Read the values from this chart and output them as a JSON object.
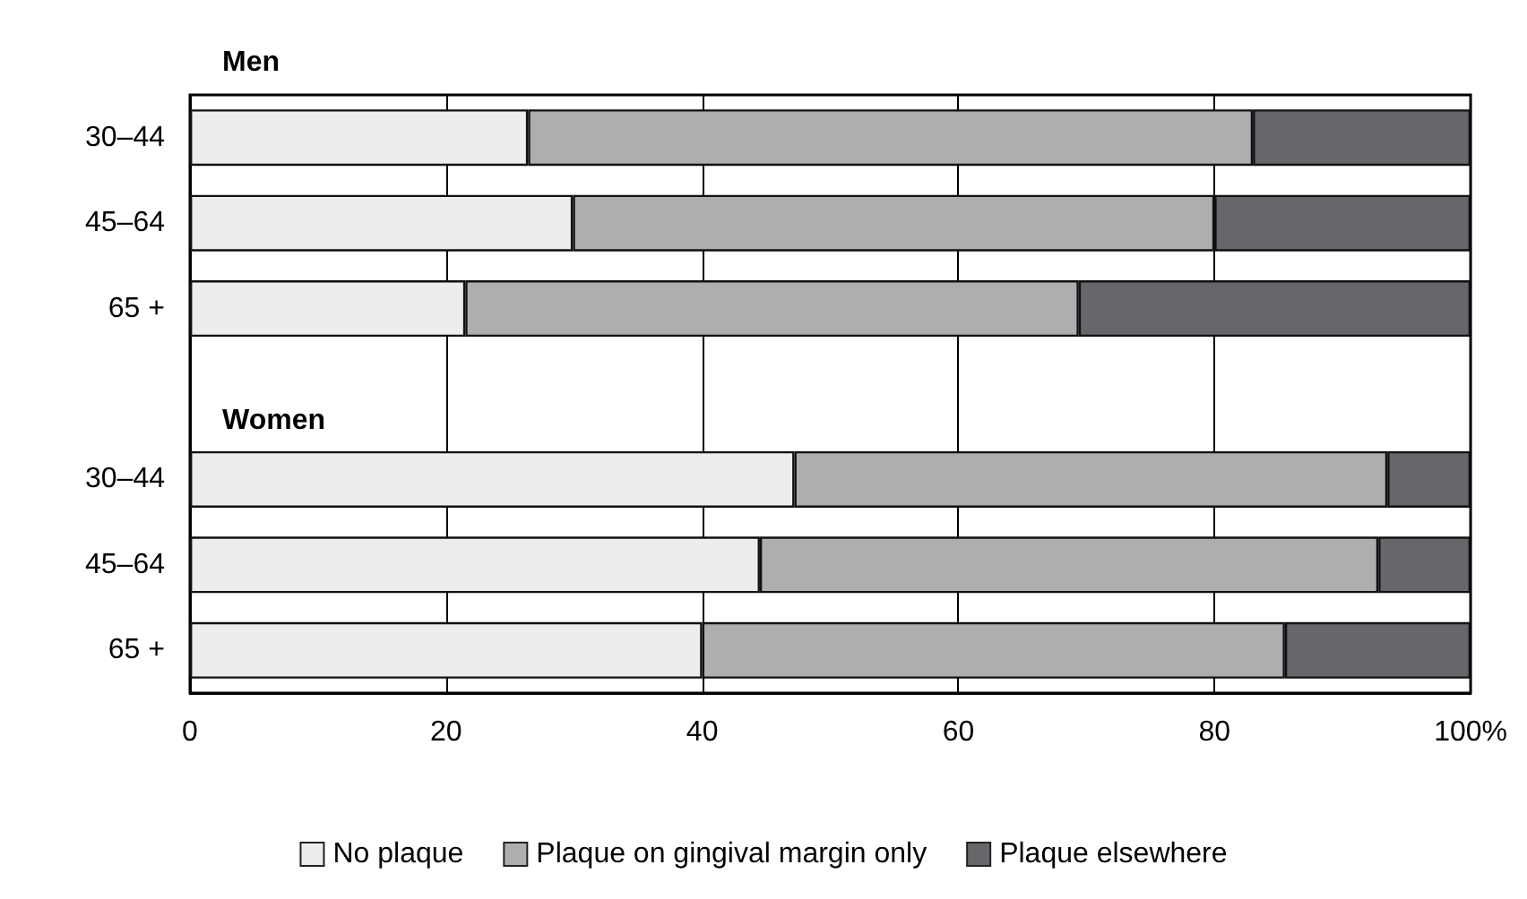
{
  "chart_data": {
    "type": "bar",
    "orientation": "horizontal",
    "stacked": true,
    "categories": [
      "30–44",
      "45–64",
      "65 +",
      null,
      "30–44",
      "45–64",
      "65 +"
    ],
    "series": [
      {
        "name": "No plaque",
        "color": "#ededee",
        "values": [
          26.4,
          29.9,
          21.5,
          null,
          47.2,
          44.5,
          40.0
        ]
      },
      {
        "name": "Plaque on gingival margin only",
        "color": "#aeaeb1",
        "values": [
          56.6,
          50.1,
          47.9,
          null,
          46.3,
          48.3,
          45.5
        ]
      },
      {
        "name": "Plaque elsewhere",
        "color": "#67666b",
        "values": [
          17.0,
          20.0,
          30.6,
          null,
          6.5,
          7.2,
          14.5
        ]
      }
    ],
    "xlim": [
      0,
      100
    ],
    "xticks": [
      0,
      20,
      40,
      60,
      80,
      {
        "value": 100,
        "label": "100%"
      }
    ],
    "grid": "x",
    "legend": "bottom",
    "annotations": [
      "Men",
      "Women"
    ]
  }
}
